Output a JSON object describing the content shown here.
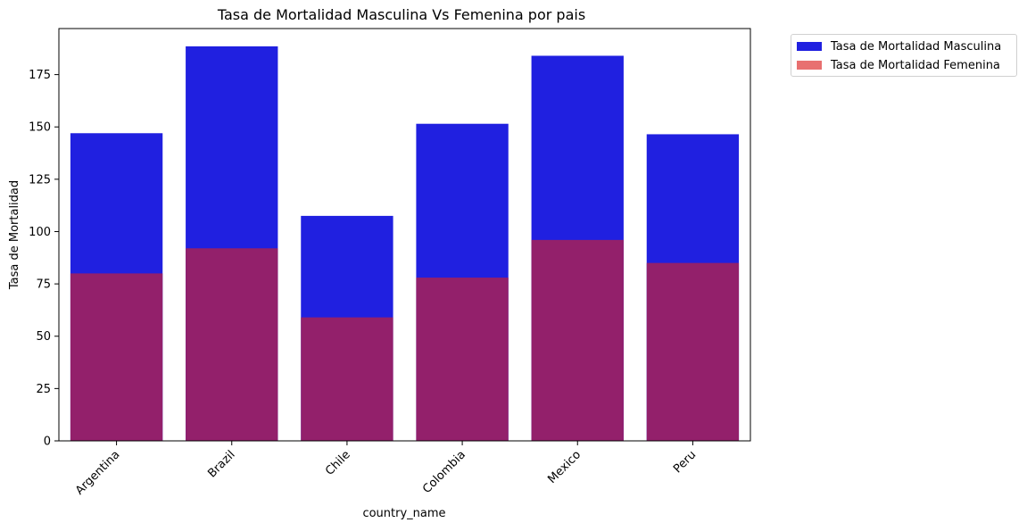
{
  "chart_data": {
    "type": "bar",
    "title": "Tasa de Mortalidad Masculina Vs Femenina por pais",
    "xlabel": "country_name",
    "ylabel": "Tasa de Mortalidad",
    "categories": [
      "Argentina",
      "Brazil",
      "Chile",
      "Colombia",
      "Mexico",
      "Peru"
    ],
    "series": [
      {
        "name": "Tasa de Mortalidad Masculina",
        "color": "#2020e0",
        "values": [
          147,
          188.5,
          107.5,
          151.5,
          184,
          146.5
        ]
      },
      {
        "name": "Tasa de Mortalidad Femenina",
        "color": "#e87070",
        "values": [
          80,
          92,
          59,
          78,
          96,
          85
        ]
      }
    ],
    "overlay_color": "#93206b",
    "ylim": [
      0,
      197
    ],
    "yticks": [
      0,
      25,
      50,
      75,
      100,
      125,
      150,
      175
    ],
    "legend_position": "outside-top-right",
    "grid": false
  }
}
